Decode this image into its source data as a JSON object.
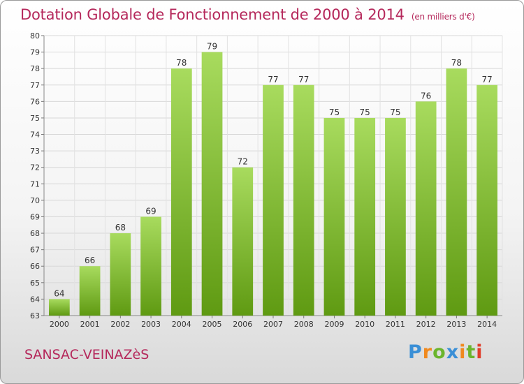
{
  "header": {
    "title": "Dotation Globale de Fonctionnement de 2000 à 2014",
    "unit": "(en milliers d'€)"
  },
  "footer": {
    "town": "SANSAC-VEINAZèS",
    "logo_text": "Proxiti"
  },
  "colors": {
    "title": "#b5285b",
    "bar_light": "#a8db5e",
    "bar_dark": "#5f9a12",
    "logo": [
      "#3a8fd6",
      "#f0891e",
      "#6bb52d",
      "#3a8fd6",
      "#f0891e",
      "#6bb52d",
      "#e03d2a"
    ]
  },
  "chart_data": {
    "type": "bar",
    "title": "Dotation Globale de Fonctionnement de 2000 à 2014",
    "subtitle": "(en milliers d'€)",
    "xlabel": "",
    "ylabel": "",
    "categories": [
      "2000",
      "2001",
      "2002",
      "2003",
      "2004",
      "2005",
      "2006",
      "2007",
      "2008",
      "2009",
      "2010",
      "2011",
      "2012",
      "2013",
      "2014"
    ],
    "values": [
      64,
      66,
      68,
      69,
      78,
      79,
      72,
      77,
      77,
      75,
      75,
      75,
      76,
      78,
      77
    ],
    "ylim": [
      63,
      80
    ],
    "yticks": [
      "63",
      "64",
      "65",
      "66",
      "67",
      "68",
      "69",
      "70",
      "71",
      "72",
      "73",
      "74",
      "75",
      "76",
      "77",
      "78",
      "79",
      "80"
    ],
    "grid": true
  }
}
